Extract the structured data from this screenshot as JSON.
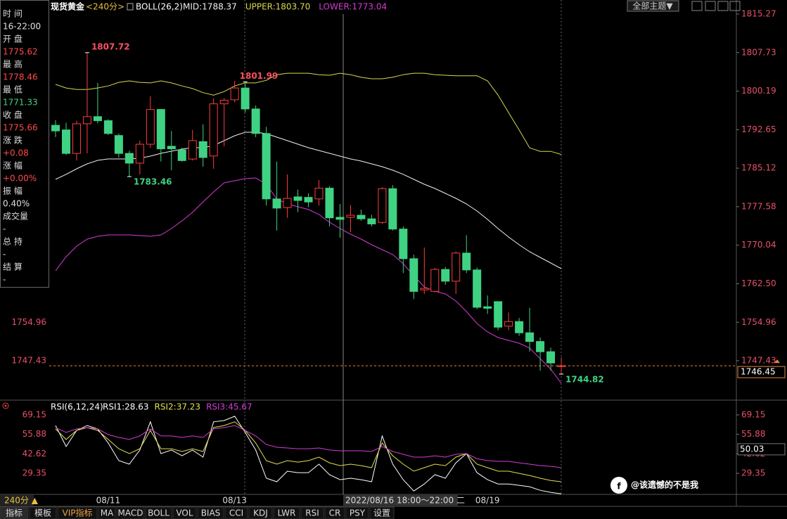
{
  "chart_data": [
    {
      "type": "candlestick",
      "title": "现货黄金",
      "period": "<240分>",
      "indicator": "BOLL(26,2)",
      "categories": [
        null,
        null,
        null,
        null,
        null,
        "08/11",
        null,
        null,
        null,
        null,
        null,
        null,
        null,
        null,
        null,
        null,
        null,
        "08/13",
        null,
        null,
        null,
        null,
        null,
        null,
        null,
        null,
        null,
        null,
        null,
        null,
        null,
        null,
        null,
        null,
        null,
        null,
        null,
        null,
        null,
        null,
        null,
        "08/19",
        null,
        null,
        null,
        null,
        null,
        null,
        null
      ],
      "open": [
        1793.5,
        1792.6,
        1788.0,
        1793.8,
        1795.2,
        1794.4,
        1791.5,
        1788.0,
        1786.1,
        1789.8,
        1796.6,
        1789.4,
        1788.7,
        1786.9,
        1790.3,
        1787.5,
        1797.7,
        1798.5,
        1800.8,
        1796.7,
        1791.9,
        1779.1,
        1777.4,
        1779.5,
        1779.4,
        1779.1,
        1781.2,
        1775.5,
        1775.5,
        1775.9,
        1775.2,
        1774.5,
        1781.1,
        1773.2,
        1767.4,
        1761.3,
        1761.0,
        1765.3,
        1763.0,
        1768.5,
        1765.2,
        1758.0,
        1759.0,
        1754.2,
        1755.1,
        1752.9,
        1751.2,
        1749.2,
        1746.3
      ],
      "high": [
        1794.5,
        1794.0,
        1794.4,
        1807.72,
        1801.8,
        1794.7,
        1791.9,
        1788.5,
        1790.5,
        1799.2,
        1796.7,
        1792.4,
        1789.1,
        1792.6,
        1793.7,
        1798.8,
        1798.8,
        1802.2,
        1801.99,
        1797.4,
        1793.2,
        1786.4,
        1783.9,
        1780.9,
        1780.2,
        1782.8,
        1781.6,
        1778.1,
        1777.9,
        1777.0,
        1776.0,
        1781.4,
        1781.8,
        1773.7,
        1768.2,
        1769.6,
        1765.6,
        1765.8,
        1768.8,
        1772.0,
        1765.7,
        1760.2,
        1759.0,
        1756.9,
        1755.8,
        1757.8,
        1752.0,
        1750.0,
        1748.1
      ],
      "low": [
        1791.2,
        1787.7,
        1786.6,
        1788.0,
        1793.9,
        1791.6,
        1787.2,
        1783.46,
        1783.9,
        1789.1,
        1786.4,
        1784.7,
        1786.4,
        1786.6,
        1785.4,
        1785.0,
        1789.4,
        1798.0,
        1796.0,
        1791.2,
        1777.8,
        1772.9,
        1775.4,
        1776.5,
        1777.5,
        1777.8,
        1773.7,
        1771.5,
        1772.6,
        1774.8,
        1773.7,
        1774.2,
        1772.9,
        1764.6,
        1759.5,
        1760.5,
        1760.8,
        1762.3,
        1760.5,
        1764.6,
        1757.5,
        1756.6,
        1753.4,
        1753.4,
        1752.3,
        1749.2,
        1745.5,
        1745.5,
        1744.82
      ],
      "close": [
        1792.4,
        1788.0,
        1793.8,
        1795.2,
        1794.4,
        1791.9,
        1788.0,
        1786.1,
        1789.8,
        1796.6,
        1788.9,
        1788.9,
        1786.6,
        1790.5,
        1787.2,
        1797.7,
        1798.4,
        1800.8,
        1796.7,
        1791.9,
        1779.1,
        1777.3,
        1779.2,
        1778.8,
        1778.5,
        1781.2,
        1775.4,
        1775.1,
        1775.9,
        1775.2,
        1774.2,
        1781.1,
        1773.2,
        1767.4,
        1761.0,
        1761.6,
        1765.3,
        1763.0,
        1768.5,
        1765.2,
        1757.9,
        1757.7,
        1754.0,
        1755.1,
        1752.9,
        1751.2,
        1749.2,
        1747.0,
        1746.45
      ],
      "up_color": "#ff3b3b",
      "down_color": "#3fd283",
      "series": [
        {
          "label": "MID:1788.37",
          "color": "#f0f0f0",
          "values": [
            1782.93,
            1783.9,
            1785.0,
            1785.96,
            1786.65,
            1786.92,
            1786.92,
            1786.92,
            1787.06,
            1787.47,
            1788.02,
            1788.44,
            1788.85,
            1789.12,
            1789.12,
            1789.54,
            1790.5,
            1791.46,
            1792.15,
            1792.15,
            1791.88,
            1791.19,
            1790.5,
            1789.81,
            1789.12,
            1788.57,
            1788.02,
            1787.47,
            1786.92,
            1786.51,
            1785.96,
            1785.41,
            1784.72,
            1783.9,
            1782.93,
            1781.97,
            1781.14,
            1780.18,
            1779.22,
            1778.12,
            1776.74,
            1775.09,
            1773.3,
            1771.65,
            1770.13,
            1768.76,
            1767.66,
            1766.56,
            1765.46
          ]
        },
        {
          "label": "UPPER:1803.70",
          "color": "#d8d850",
          "values": [
            1801.5,
            1800.8,
            1800.5,
            1800.5,
            1800.8,
            1801.2,
            1801.9,
            1802.2,
            1801.9,
            1801.8,
            1802.2,
            1801.8,
            1801.2,
            1800.7,
            1799.9,
            1799.4,
            1800.1,
            1801.2,
            1801.8,
            1801.8,
            1802.3,
            1803.4,
            1803.7,
            1803.7,
            1803.7,
            1803.4,
            1803.3,
            1803.7,
            1803.4,
            1802.9,
            1802.6,
            1802.6,
            1802.9,
            1803.4,
            1803.7,
            1803.7,
            1803.4,
            1803.3,
            1803.2,
            1803.2,
            1803.2,
            1802.2,
            1799.4,
            1796.0,
            1792.6,
            1789.1,
            1788.4,
            1788.4,
            1787.8
          ]
        },
        {
          "label": "LOWER:1773.04",
          "color": "#d43cd4",
          "values": [
            1765.04,
            1767.8,
            1769.86,
            1771.23,
            1771.79,
            1772.06,
            1772.06,
            1772.06,
            1771.92,
            1771.79,
            1772.06,
            1773.3,
            1774.81,
            1776.46,
            1778.53,
            1780.45,
            1782.24,
            1782.66,
            1783.07,
            1783.21,
            1781.97,
            1779.08,
            1778.12,
            1777.56,
            1777.02,
            1776.05,
            1774.54,
            1773.3,
            1772.2,
            1771.23,
            1770.13,
            1769.17,
            1768.21,
            1766.42,
            1764.08,
            1761.88,
            1761.05,
            1760.5,
            1759.13,
            1757.06,
            1754.72,
            1753.07,
            1751.97,
            1751.42,
            1750.87,
            1749.91,
            1747.84,
            1745.78,
            1743.02
          ]
        }
      ],
      "ylim": [
        1739.86,
        1817.33
      ],
      "yticks": [
        1815.27,
        1807.73,
        1800.19,
        1792.65,
        1785.12,
        1777.58,
        1770.04,
        {
          "value": 1762.5,
          "label": "1762.50"
        },
        1754.96,
        1747.43
      ],
      "last_price": 1746.45,
      "crosshair_label": "2022/08/16 18:00～22:00 二"
    },
    {
      "type": "line",
      "title": "RSI(6,12,24)",
      "series": [
        {
          "label": "RSI1:28.63",
          "color": "#ffffff",
          "values": [
            61.9,
            47.6,
            58.6,
            61.9,
            59.6,
            50.0,
            38.0,
            35.6,
            45.2,
            64.4,
            42.8,
            45.2,
            41.3,
            45.2,
            40.4,
            64.4,
            65.3,
            68.2,
            57.2,
            45.2,
            26.0,
            23.6,
            30.8,
            29.8,
            29.8,
            35.6,
            28.4,
            25.0,
            26.0,
            25.0,
            23.6,
            54.8,
            35.6,
            25.0,
            17.3,
            22.1,
            28.4,
            26.0,
            36.5,
            42.8,
            29.8,
            25.0,
            22.1,
            22.1,
            21.2,
            20.2,
            17.8,
            16.4,
            15.4
          ]
        },
        {
          "label": "RSI2:37.23",
          "color": "#e0e050",
          "values": [
            59.6,
            52.4,
            58.6,
            60.5,
            58.6,
            52.4,
            46.1,
            42.8,
            46.1,
            58.6,
            46.1,
            46.1,
            44.2,
            46.1,
            44.2,
            60.5,
            61.9,
            64.4,
            58.6,
            50.0,
            38.0,
            35.6,
            38.0,
            37.0,
            38.0,
            40.4,
            36.5,
            34.6,
            35.6,
            34.6,
            33.2,
            50.0,
            41.3,
            35.6,
            30.8,
            33.2,
            35.6,
            34.6,
            40.4,
            42.8,
            35.6,
            33.2,
            30.8,
            30.8,
            29.3,
            27.9,
            26.0,
            24.5,
            23.6
          ]
        },
        {
          "label": "RSI3:45.67",
          "color": "#d43cd4",
          "values": [
            60.5,
            57.2,
            59.6,
            60.5,
            59.6,
            55.7,
            53.8,
            52.4,
            54.8,
            59.6,
            54.8,
            54.8,
            53.8,
            54.8,
            53.8,
            59.6,
            60.5,
            61.9,
            58.6,
            54.8,
            49.0,
            47.1,
            46.6,
            46.1,
            46.1,
            46.6,
            45.2,
            44.7,
            44.7,
            44.7,
            44.2,
            47.6,
            44.2,
            42.3,
            40.4,
            40.4,
            41.3,
            40.4,
            42.3,
            42.8,
            39.4,
            38.0,
            37.5,
            37.5,
            36.5,
            35.6,
            34.6,
            34.1,
            33.2
          ]
        }
      ],
      "ylim": [
        15,
        76.3
      ],
      "yticks": [
        69.15,
        55.88,
        42.62,
        29.35
      ],
      "cursor_value": 50.03
    }
  ],
  "info_panel": [
    {
      "label": "时 间",
      "value": "16-22:00",
      "color": "#e0e0e0"
    },
    {
      "label": "开 盘",
      "value": "1775.62",
      "color": "#ff4a4a"
    },
    {
      "label": "最 高",
      "value": "1778.46",
      "color": "#ff4a4a"
    },
    {
      "label": "最 低",
      "value": "1771.33",
      "color": "#3fd283"
    },
    {
      "label": "收 盘",
      "value": "1775.66",
      "color": "#ff4a4a"
    },
    {
      "label": "涨 跌",
      "value": "+0.08",
      "color": "#ff4a4a"
    },
    {
      "label": "涨 幅",
      "value": "+0.00%",
      "color": "#ff4a4a"
    },
    {
      "label": "振 幅",
      "value": "0.40%",
      "color": "#e0e0e0"
    },
    {
      "label": "成交量",
      "value": "-",
      "color": "#e0e0e0"
    },
    {
      "label": "总 持",
      "value": "-",
      "color": "#e0e0e0"
    },
    {
      "label": "结 算",
      "value": "-",
      "color": "#e0e0e0"
    }
  ],
  "toolbar": {
    "theme": "全部主题▼"
  },
  "period_button": "240分 ▲",
  "tabs": [
    "指标",
    "模板",
    "VIP指标",
    "MA",
    "MACD",
    "BOLL",
    "VOL",
    "BIAS",
    "CCI",
    "KDJ",
    "LWR",
    "RSI",
    "CR",
    "PSY",
    "设置"
  ],
  "watermark": "@该遗憾的不是我"
}
